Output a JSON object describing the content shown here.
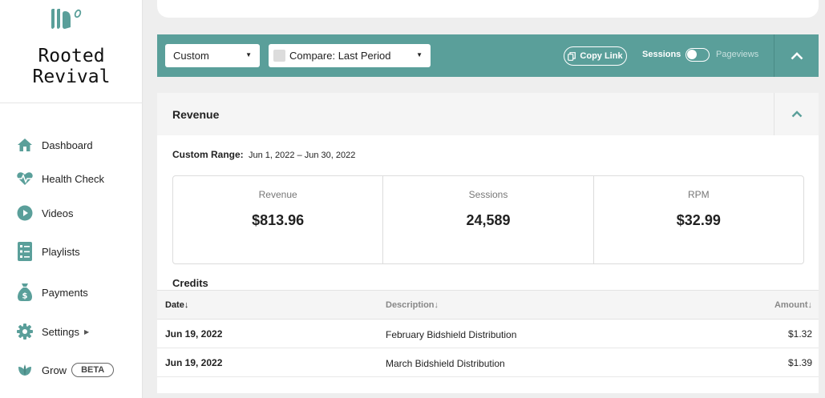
{
  "brand": {
    "name": "Rooted\nRevival",
    "accent": "#5a9f9a"
  },
  "nav": {
    "dashboard": "Dashboard",
    "health_check": "Health Check",
    "videos": "Videos",
    "playlists": "Playlists",
    "payments": "Payments",
    "settings": "Settings",
    "grow": "Grow",
    "grow_badge": "BETA"
  },
  "toolbar": {
    "date_select": "Custom",
    "compare_select": "Compare: Last Period",
    "copy_link": "Copy Link",
    "toggle_left": "Sessions",
    "toggle_right": "Pageviews",
    "toggle_state": "off"
  },
  "panel": {
    "title": "Revenue",
    "range_label": "Custom Range:",
    "range_value": "Jun 1, 2022 – Jun 30, 2022",
    "stats": [
      {
        "label": "Revenue",
        "value": "$813.96"
      },
      {
        "label": "Sessions",
        "value": "24,589"
      },
      {
        "label": "RPM",
        "value": "$32.99"
      }
    ]
  },
  "credits": {
    "title": "Credits",
    "columns": {
      "date": "Date",
      "description": "Description",
      "amount": "Amount"
    },
    "rows": [
      {
        "date": "Jun 19, 2022",
        "description": "February Bidshield Distribution",
        "amount": "$1.32"
      },
      {
        "date": "Jun 19, 2022",
        "description": "March Bidshield Distribution",
        "amount": "$1.39"
      }
    ]
  }
}
